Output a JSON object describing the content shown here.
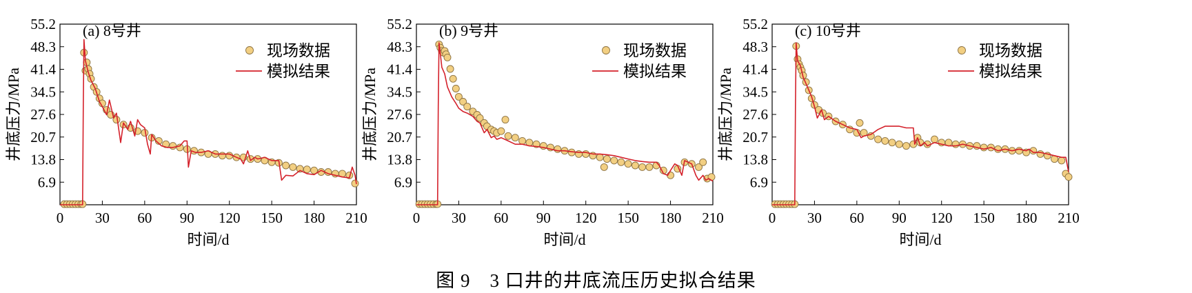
{
  "figure": {
    "caption": "图 9　3 口井的井底流压历史拟合结果"
  },
  "colors": {
    "field_fill": "#f2cf82",
    "field_edge": "#8a7040",
    "model_line": "#d4202a",
    "axis": "#000000"
  },
  "chart_data": [
    {
      "type": "line",
      "title": "(a) 8号井",
      "xlabel": "时间/d",
      "ylabel": "井底压力/MPa",
      "xlim": [
        0,
        210
      ],
      "ylim": [
        0,
        55.2
      ],
      "x_ticks": [
        0,
        30,
        60,
        90,
        120,
        150,
        180,
        210
      ],
      "y_ticks": [
        6.9,
        13.8,
        20.7,
        27.6,
        34.5,
        41.4,
        48.3,
        55.2
      ],
      "legend_position": "top-right",
      "series": [
        {
          "name": "现场数据",
          "kind": "scatter",
          "x": [
            3,
            5,
            7,
            9,
            11,
            13,
            15,
            16,
            17,
            18,
            19,
            20,
            21,
            22,
            24,
            26,
            28,
            30,
            33,
            36,
            40,
            45,
            50,
            55,
            60,
            65,
            70,
            75,
            80,
            85,
            90,
            95,
            100,
            105,
            110,
            115,
            120,
            125,
            130,
            135,
            140,
            145,
            150,
            155,
            160,
            165,
            170,
            175,
            180,
            185,
            190,
            195,
            200,
            205,
            209
          ],
          "y": [
            0.2,
            0.2,
            0.2,
            0.2,
            0.2,
            0.2,
            0.2,
            0.2,
            46.5,
            41,
            43.5,
            41.5,
            40,
            38.5,
            36,
            34.5,
            32.5,
            31,
            29,
            27.5,
            26,
            24.5,
            23.5,
            22.5,
            22,
            20.5,
            19.5,
            18.5,
            18,
            17.5,
            17,
            16.5,
            16,
            15.5,
            15.5,
            15,
            15,
            14.5,
            14.5,
            14,
            14,
            13.5,
            13,
            12.8,
            12,
            11.5,
            11,
            10.8,
            10.5,
            10,
            10,
            9.5,
            9.5,
            9,
            6.5
          ]
        },
        {
          "name": "模拟结果",
          "kind": "line",
          "x": [
            0,
            16,
            16.5,
            17,
            18,
            20,
            22,
            25,
            28,
            30,
            33,
            35,
            38,
            40,
            43,
            45,
            48,
            50,
            53,
            55,
            57,
            60,
            62,
            64,
            65,
            68,
            72,
            76,
            80,
            85,
            88,
            90,
            91,
            93,
            96,
            100,
            105,
            110,
            115,
            120,
            125,
            128,
            130,
            133,
            135,
            138,
            140,
            145,
            150,
            155,
            157,
            160,
            165,
            170,
            175,
            180,
            185,
            190,
            195,
            200,
            205,
            207,
            209,
            210
          ],
          "y": [
            0,
            0,
            30,
            50.5,
            44,
            40.5,
            38,
            35.5,
            31.5,
            30,
            27.5,
            32,
            26.5,
            28,
            19,
            25,
            23,
            25.5,
            21,
            26,
            24.5,
            23.5,
            18.5,
            15.5,
            21.5,
            19.5,
            18,
            17.5,
            17.5,
            18,
            19.5,
            19.5,
            11.5,
            16.5,
            16,
            16,
            16.5,
            15.5,
            15.5,
            15.5,
            14.5,
            14,
            12.5,
            16.5,
            13.5,
            14.5,
            14,
            14.5,
            13.5,
            13.5,
            7.5,
            9,
            8.8,
            10.5,
            9.5,
            9.2,
            10.5,
            9.5,
            9,
            8.5,
            8.2,
            11.5,
            9,
            6.3
          ]
        }
      ]
    },
    {
      "type": "line",
      "title": "(b) 9号井",
      "xlabel": "时间/d",
      "ylabel": "井底压力/MPa",
      "xlim": [
        0,
        210
      ],
      "ylim": [
        0,
        55.2
      ],
      "x_ticks": [
        0,
        30,
        60,
        90,
        120,
        150,
        180,
        210
      ],
      "y_ticks": [
        6.9,
        13.8,
        20.7,
        27.6,
        34.5,
        41.4,
        48.3,
        55.2
      ],
      "legend_position": "top-right",
      "series": [
        {
          "name": "现场数据",
          "kind": "scatter",
          "x": [
            2,
            4,
            6,
            8,
            10,
            12,
            14,
            15,
            16,
            17,
            18,
            19,
            20,
            21,
            22,
            24,
            26,
            28,
            30,
            33,
            36,
            40,
            43,
            45,
            48,
            50,
            53,
            55,
            57,
            60,
            63,
            65,
            70,
            75,
            80,
            85,
            90,
            95,
            100,
            105,
            110,
            115,
            120,
            125,
            130,
            133,
            135,
            140,
            145,
            150,
            155,
            160,
            165,
            170,
            175,
            180,
            185,
            190,
            195,
            200,
            203,
            206,
            209
          ],
          "y": [
            0.2,
            0.2,
            0.2,
            0.2,
            0.2,
            0.2,
            0.2,
            0.2,
            49,
            48,
            47,
            46.5,
            47,
            46,
            45,
            41.5,
            38.5,
            35.5,
            33,
            31.5,
            30,
            28.5,
            27.5,
            26.5,
            25,
            24,
            23,
            22.5,
            22,
            22.5,
            26,
            21,
            20.5,
            19.5,
            19,
            18.5,
            18,
            17.5,
            17,
            16.5,
            16,
            15.5,
            15.5,
            15,
            14.5,
            11.5,
            14,
            13.5,
            13,
            12.5,
            12,
            11.5,
            11.5,
            12,
            10.5,
            9,
            11,
            13,
            12.5,
            11.5,
            13,
            8,
            8.5
          ]
        },
        {
          "name": "模拟结果",
          "kind": "line",
          "x": [
            0,
            15,
            15.5,
            16,
            17,
            18,
            20,
            22,
            25,
            28,
            30,
            33,
            36,
            40,
            43,
            45,
            48,
            50,
            53,
            55,
            57,
            60,
            65,
            70,
            75,
            80,
            85,
            90,
            95,
            100,
            105,
            110,
            115,
            120,
            125,
            130,
            135,
            140,
            145,
            150,
            155,
            160,
            165,
            170,
            172,
            175,
            178,
            180,
            183,
            185,
            188,
            190,
            195,
            198,
            200,
            203,
            205,
            207,
            210
          ],
          "y": [
            0,
            0,
            30,
            49.5,
            46,
            42,
            40,
            36,
            33,
            31,
            29.5,
            28.5,
            28,
            27,
            25.5,
            25,
            22,
            23,
            20.5,
            21,
            20,
            20.5,
            19.5,
            18.5,
            18.5,
            18,
            17.8,
            17.5,
            17,
            16.5,
            16.5,
            16.2,
            16,
            16,
            15.5,
            15.5,
            15.3,
            15,
            14.5,
            14,
            13.5,
            13.2,
            13,
            13,
            12,
            9.5,
            9,
            10.5,
            12.5,
            12,
            9,
            13.5,
            12.5,
            9,
            7.5,
            9,
            7.5,
            8,
            7.2
          ]
        }
      ]
    },
    {
      "type": "line",
      "title": "(c) 10号井",
      "xlabel": "时间/d",
      "ylabel": "井底压力/MPa",
      "xlim": [
        0,
        210
      ],
      "ylim": [
        0,
        55.2
      ],
      "x_ticks": [
        0,
        30,
        60,
        90,
        120,
        150,
        180,
        210
      ],
      "y_ticks": [
        6.9,
        13.8,
        20.7,
        27.6,
        34.5,
        41.4,
        48.3,
        55.2
      ],
      "legend_position": "top-right",
      "series": [
        {
          "name": "现场数据",
          "kind": "scatter",
          "x": [
            2,
            4,
            6,
            8,
            10,
            12,
            14,
            16,
            17,
            18,
            19,
            20,
            21,
            22,
            24,
            26,
            28,
            30,
            33,
            36,
            40,
            45,
            50,
            55,
            60,
            62,
            65,
            70,
            75,
            80,
            85,
            90,
            95,
            100,
            103,
            105,
            110,
            115,
            120,
            125,
            130,
            135,
            140,
            145,
            150,
            155,
            160,
            165,
            170,
            175,
            180,
            185,
            190,
            195,
            200,
            205,
            208,
            210
          ],
          "y": [
            0.2,
            0.2,
            0.2,
            0.2,
            0.2,
            0.2,
            0.2,
            0.2,
            48.5,
            44.5,
            43,
            42,
            41,
            39.5,
            37.5,
            35,
            32.5,
            30.5,
            29,
            28,
            27,
            25.5,
            24.5,
            23,
            22,
            25,
            22,
            21,
            20,
            19.5,
            19,
            18.5,
            18,
            18.5,
            20.5,
            19,
            18.5,
            20,
            19,
            19,
            18.5,
            18.5,
            18,
            18,
            17.5,
            17.5,
            17,
            17,
            16.5,
            16.5,
            16,
            16.5,
            15.5,
            15,
            14,
            13.5,
            9.5,
            8.5
          ]
        },
        {
          "name": "模拟结果",
          "kind": "line",
          "x": [
            0,
            16,
            16.5,
            17,
            18,
            20,
            22,
            25,
            28,
            30,
            32,
            35,
            37,
            40,
            45,
            50,
            55,
            60,
            63,
            65,
            70,
            75,
            80,
            85,
            90,
            95,
            100,
            101,
            103,
            105,
            108,
            110,
            115,
            120,
            125,
            130,
            135,
            140,
            145,
            150,
            155,
            160,
            165,
            170,
            175,
            180,
            182,
            185,
            190,
            195,
            200,
            205,
            208,
            210
          ],
          "y": [
            0,
            0,
            30,
            49.5,
            44,
            42.5,
            39,
            36,
            33,
            30,
            26.5,
            29,
            26,
            27,
            25.5,
            24.5,
            23.5,
            23,
            20.5,
            21,
            21.5,
            23,
            24,
            24,
            24,
            23.5,
            23.5,
            18.5,
            20.5,
            18,
            19,
            18,
            19,
            18.5,
            18,
            18,
            18.5,
            18,
            17.5,
            17,
            17.5,
            16.5,
            17,
            16.5,
            17,
            16.5,
            17,
            16,
            16,
            15.5,
            15,
            14.5,
            14.5,
            10
          ]
        }
      ]
    }
  ]
}
